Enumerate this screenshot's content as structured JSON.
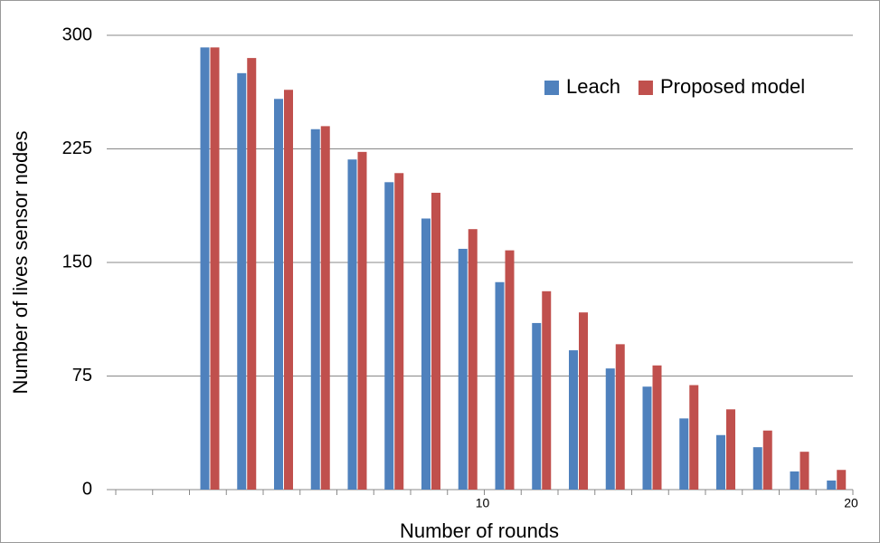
{
  "chart_data": {
    "type": "bar",
    "xlabel": "Number of rounds",
    "ylabel": "Number of lives sensor nodes",
    "categories": [
      null,
      null,
      null,
      null,
      null,
      null,
      null,
      null,
      null,
      "10",
      null,
      null,
      null,
      null,
      null,
      null,
      null,
      null,
      null,
      "20"
    ],
    "series": [
      {
        "name": "Leach",
        "color": "#4f81bd",
        "values": [
          null,
          null,
          292,
          275,
          258,
          238,
          218,
          203,
          179,
          159,
          137,
          110,
          92,
          80,
          68,
          47,
          36,
          28,
          12,
          6
        ]
      },
      {
        "name": "Proposed model",
        "color": "#c0504d",
        "values": [
          null,
          null,
          292,
          285,
          264,
          240,
          223,
          209,
          196,
          172,
          158,
          131,
          117,
          96,
          82,
          69,
          53,
          39,
          25,
          13
        ]
      }
    ],
    "ylim": [
      0,
      300
    ],
    "yticks": [
      0,
      75,
      150,
      225,
      300
    ],
    "grid": true,
    "legend": "top-right"
  }
}
